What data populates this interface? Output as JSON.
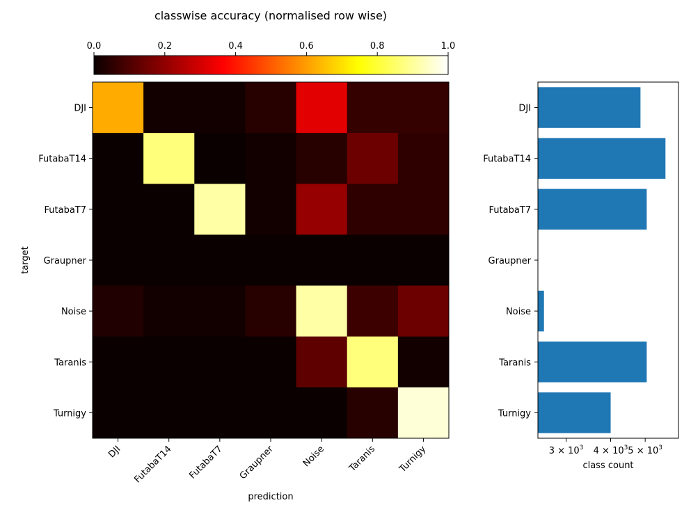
{
  "chart_data": [
    {
      "type": "heatmap",
      "title": "classwise accuracy (normalised row wise)",
      "xlabel": "prediction",
      "ylabel": "target",
      "rows": [
        "DJI",
        "FutabaT14",
        "FutabaT7",
        "Graupner",
        "Noise",
        "Taranis",
        "Turnigy"
      ],
      "cols": [
        "DJI",
        "FutabaT14",
        "FutabaT7",
        "Graupner",
        "Noise",
        "Taranis",
        "Turnigy"
      ],
      "values": [
        [
          0.62,
          0.01,
          0.01,
          0.04,
          0.31,
          0.06,
          0.06
        ],
        [
          0.0,
          0.87,
          0.0,
          0.01,
          0.04,
          0.14,
          0.05
        ],
        [
          0.0,
          0.0,
          0.91,
          0.01,
          0.2,
          0.05,
          0.05
        ],
        [
          0.0,
          0.0,
          0.0,
          0.0,
          0.0,
          0.0,
          0.0
        ],
        [
          0.03,
          0.01,
          0.01,
          0.04,
          0.91,
          0.07,
          0.14
        ],
        [
          0.0,
          0.0,
          0.0,
          0.0,
          0.12,
          0.87,
          0.01
        ],
        [
          0.0,
          0.0,
          0.0,
          0.0,
          0.0,
          0.04,
          0.96
        ]
      ],
      "colormap": "hot",
      "colorbar": {
        "vmin": 0.0,
        "vmax": 1.0,
        "ticks": [
          "0.0",
          "0.2",
          "0.4",
          "0.6",
          "0.8",
          "1.0"
        ],
        "placement": "top"
      }
    },
    {
      "type": "bar",
      "orientation": "horizontal",
      "categories": [
        "DJI",
        "FutabaT14",
        "FutabaT7",
        "Graupner",
        "Noise",
        "Taranis",
        "Turnigy"
      ],
      "values": [
        4850,
        5700,
        5050,
        0,
        2600,
        5050,
        4000
      ],
      "xlabel": "class count",
      "xscale": "log",
      "xlim": [
        2500,
        6200
      ],
      "xticks": [
        {
          "value": 3000,
          "base": "3 × 10",
          "exp": "3"
        },
        {
          "value": 4000,
          "base": "4 × 10",
          "exp": "3"
        },
        {
          "value": 5000,
          "base": "5 × 10",
          "exp": "3"
        }
      ],
      "bar_color": "#1f77b4"
    }
  ]
}
